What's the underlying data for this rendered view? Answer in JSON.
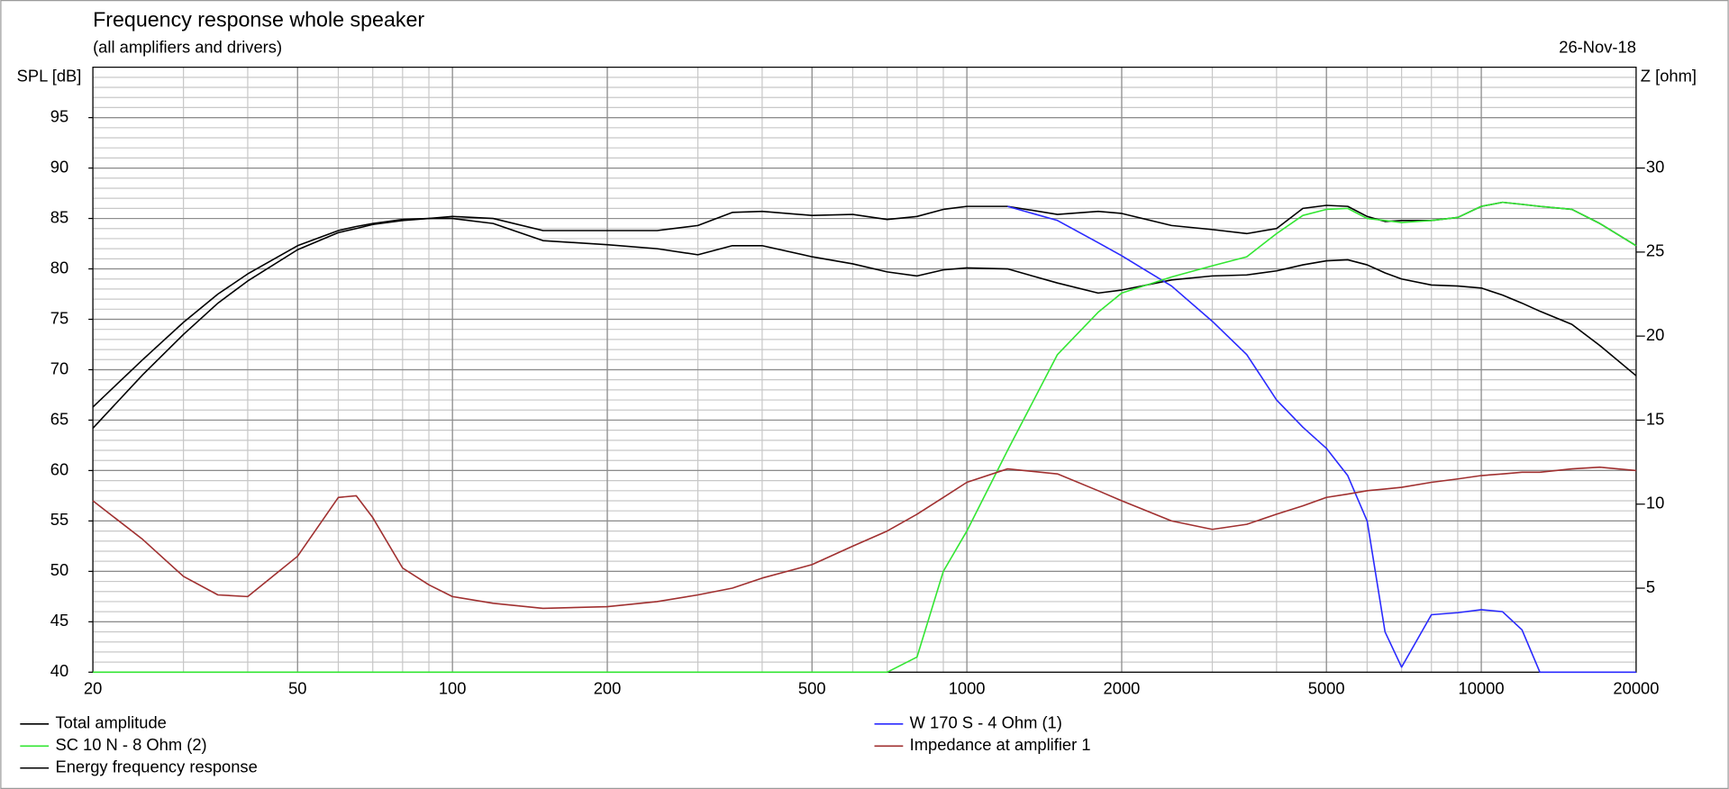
{
  "chart_data": {
    "type": "line",
    "title": "Frequency response whole speaker",
    "subtitle": "(all amplifiers and drivers)",
    "date": "26-Nov-18",
    "ylabel": "SPL [dB]",
    "y2label": "Z [ohm]",
    "xscale": "log",
    "grid": true,
    "legend": "bottom",
    "xlim": [
      20,
      20000
    ],
    "xticks": [
      20,
      50,
      100,
      200,
      500,
      1000,
      2000,
      5000,
      10000,
      20000
    ],
    "ylim": [
      40,
      100
    ],
    "yticks": [
      40,
      45,
      50,
      55,
      60,
      65,
      70,
      75,
      80,
      85,
      90,
      95
    ],
    "y2lim": [
      0,
      36
    ],
    "y2ticks": [
      5,
      10,
      15,
      20,
      25,
      30
    ],
    "x": [
      20,
      25,
      30,
      35,
      40,
      50,
      60,
      65,
      70,
      80,
      90,
      100,
      120,
      150,
      200,
      250,
      300,
      350,
      400,
      500,
      600,
      700,
      800,
      900,
      1000,
      1200,
      1500,
      1800,
      2000,
      2500,
      3000,
      3500,
      4000,
      4500,
      5000,
      5500,
      6000,
      6500,
      7000,
      8000,
      9000,
      10000,
      11000,
      12000,
      13000,
      15000,
      17000,
      20000
    ],
    "series": [
      {
        "name": "Total amplitude",
        "color": "#000000",
        "values": [
          66.3,
          71,
          74.7,
          77.5,
          79.5,
          82.3,
          83.8,
          84.2,
          84.5,
          84.9,
          85,
          85.2,
          85,
          83.8,
          83.8,
          83.8,
          84.3,
          85.6,
          85.7,
          85.3,
          85.4,
          84.9,
          85.2,
          85.9,
          86.2,
          86.2,
          85.4,
          85.7,
          85.5,
          84.3,
          83.9,
          83.5,
          84,
          86,
          86.3,
          86.2,
          85.2,
          84.7,
          84.8,
          84.8,
          85.1,
          86.2,
          86.6,
          86.4,
          86.2,
          85.9,
          84.5,
          82.3
        ]
      },
      {
        "name": "W 170 S - 4 Ohm (1)",
        "color": "#2a2aff",
        "values": [
          null,
          null,
          null,
          null,
          null,
          null,
          null,
          null,
          null,
          null,
          null,
          null,
          null,
          null,
          null,
          null,
          null,
          null,
          null,
          null,
          null,
          null,
          null,
          null,
          null,
          86.2,
          84.8,
          82.6,
          81.3,
          78.3,
          74.8,
          71.5,
          67,
          64.3,
          62.2,
          59.5,
          55,
          44,
          40.5,
          45.7,
          45.9,
          46.2,
          46,
          44.2,
          40,
          40,
          40,
          40
        ]
      },
      {
        "name": "SC 10 N - 8 Ohm (2)",
        "color": "#33e633",
        "values": [
          40,
          40,
          40,
          40,
          40,
          40,
          40,
          40,
          40,
          40,
          40,
          40,
          40,
          40,
          40,
          40,
          40,
          40,
          40,
          40,
          40,
          40,
          41.5,
          50,
          54,
          62,
          71.5,
          75.7,
          77.6,
          79.2,
          80.3,
          81.2,
          83.5,
          85.3,
          85.9,
          86,
          85,
          84.8,
          84.6,
          84.8,
          85.1,
          86.2,
          86.6,
          86.4,
          86.2,
          85.9,
          84.5,
          82.3
        ]
      },
      {
        "name": "Impedance at amplifier 1",
        "color": "#a03030",
        "axis": "y2",
        "values": [
          10.2,
          7.9,
          5.7,
          4.6,
          4.5,
          6.9,
          10.4,
          10.5,
          9.2,
          6.2,
          5.2,
          4.5,
          4.1,
          3.8,
          3.9,
          4.2,
          4.6,
          5,
          5.6,
          6.4,
          7.5,
          8.4,
          9.4,
          10.4,
          11.3,
          12.1,
          11.8,
          10.8,
          10.2,
          9,
          8.5,
          8.8,
          9.4,
          9.9,
          10.4,
          10.6,
          10.8,
          10.9,
          11,
          11.3,
          11.5,
          11.7,
          11.8,
          11.9,
          11.9,
          12.1,
          12.2,
          12
        ]
      },
      {
        "name": "Energy frequency response",
        "color": "#000000",
        "values": [
          64.2,
          69.5,
          73.5,
          76.6,
          78.8,
          81.9,
          83.6,
          84,
          84.4,
          84.8,
          85,
          85,
          84.5,
          82.8,
          82.4,
          82,
          81.4,
          82.3,
          82.3,
          81.2,
          80.5,
          79.7,
          79.3,
          79.9,
          80.1,
          80,
          78.6,
          77.6,
          77.9,
          78.9,
          79.3,
          79.4,
          79.8,
          80.4,
          80.8,
          80.9,
          80.4,
          79.6,
          79,
          78.4,
          78.3,
          78.1,
          77.4,
          76.6,
          75.8,
          74.5,
          72.4,
          69.4
        ]
      }
    ]
  }
}
